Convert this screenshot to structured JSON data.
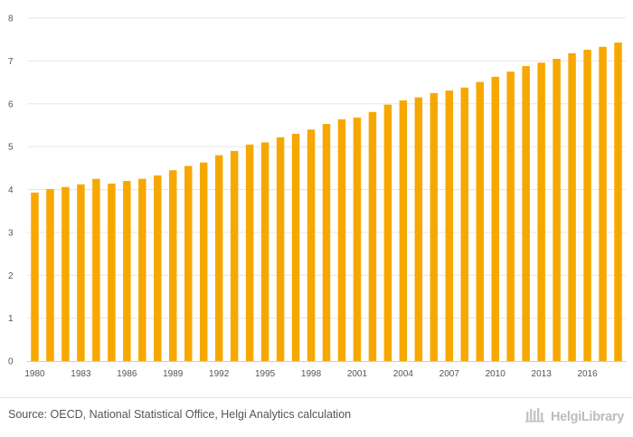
{
  "chart_data": {
    "type": "bar",
    "years": [
      1980,
      1981,
      1982,
      1983,
      1984,
      1985,
      1986,
      1987,
      1988,
      1989,
      1990,
      1991,
      1992,
      1993,
      1994,
      1995,
      1996,
      1997,
      1998,
      1999,
      2000,
      2001,
      2002,
      2003,
      2004,
      2005,
      2006,
      2007,
      2008,
      2009,
      2010,
      2011,
      2012,
      2013,
      2014,
      2015,
      2016,
      2017,
      2018
    ],
    "values": [
      3.93,
      4.01,
      4.06,
      4.12,
      4.25,
      4.14,
      4.2,
      4.25,
      4.33,
      4.45,
      4.55,
      4.63,
      4.8,
      4.9,
      5.05,
      5.1,
      5.22,
      5.3,
      5.4,
      5.53,
      5.64,
      5.68,
      5.81,
      5.98,
      6.08,
      6.15,
      6.25,
      6.31,
      6.38,
      6.51,
      6.63,
      6.75,
      6.88,
      6.96,
      7.05,
      7.18,
      7.26,
      7.33,
      7.43
    ],
    "x_tick_labels": [
      "1980",
      "1983",
      "1986",
      "1989",
      "1992",
      "1995",
      "1998",
      "2001",
      "2004",
      "2007",
      "2010",
      "2013",
      "2016"
    ],
    "y_tick_labels": [
      "0",
      "1",
      "2",
      "3",
      "4",
      "5",
      "6",
      "7",
      "8"
    ],
    "ylim": [
      0,
      8
    ],
    "grid": true,
    "bar_color": "#f7a800",
    "title": "",
    "xlabel": "",
    "ylabel": ""
  },
  "footer": {
    "source": "Source: OECD, National Statistical Office, Helgi Analytics calculation",
    "logo_text": "HelgiLibrary"
  }
}
